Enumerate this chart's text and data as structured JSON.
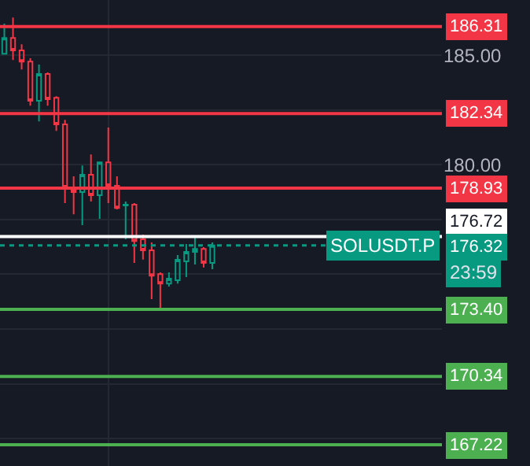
{
  "chart_data": {
    "type": "candlestick",
    "categories": [
      null,
      null,
      null,
      null,
      null,
      null,
      null,
      null,
      null,
      null,
      null,
      null,
      null,
      null,
      null,
      null,
      null,
      null,
      null,
      null,
      null,
      null,
      null,
      null,
      null,
      null,
      null,
      null,
      null,
      null,
      null,
      null,
      null,
      null,
      null,
      null,
      null,
      null,
      null,
      null,
      null,
      null,
      null,
      null,
      null,
      null,
      null,
      null,
      null,
      null,
      null
    ],
    "ohlc": [
      [
        185.07,
        186.44,
        185.07,
        185.79
      ],
      [
        185.79,
        186.72,
        184.78,
        185.22
      ],
      [
        185.22,
        185.5,
        184.35,
        184.71
      ],
      [
        184.71,
        184.86,
        182.7,
        182.92
      ],
      [
        182.92,
        184.57,
        181.98,
        184.14
      ],
      [
        184.14,
        184.21,
        182.7,
        182.99
      ],
      [
        183.06,
        183.13,
        181.55,
        181.84
      ],
      [
        181.84,
        182.05,
        178.25,
        178.97
      ],
      [
        178.97,
        179.47,
        177.74,
        178.75
      ],
      [
        178.75,
        179.97,
        177.24,
        179.54
      ],
      [
        179.54,
        180.47,
        178.32,
        178.61
      ],
      [
        178.61,
        180.11,
        177.53,
        180.11
      ],
      [
        180.11,
        181.7,
        178.25,
        179.04
      ],
      [
        179.04,
        179.47,
        177.96,
        178.03
      ],
      [
        178.14,
        178.32,
        176.6,
        178.18
      ],
      [
        178.18,
        178.25,
        175.52,
        176.52
      ],
      [
        176.6,
        176.81,
        175.67,
        176.09
      ],
      [
        176.09,
        176.45,
        173.87,
        174.94
      ],
      [
        175.01,
        175.09,
        173.36,
        174.58
      ],
      [
        174.58,
        175.09,
        174.44,
        174.8
      ],
      [
        174.73,
        175.88,
        174.58,
        175.66
      ],
      [
        175.59,
        176.38,
        174.87,
        176.02
      ],
      [
        176.02,
        176.67,
        175.45,
        176.16
      ],
      [
        176.16,
        176.24,
        175.31,
        175.52
      ],
      [
        175.52,
        176.45,
        175.23,
        176.32
      ],
      null,
      null,
      null,
      null,
      null,
      null,
      null,
      null,
      null,
      null,
      null,
      null,
      null,
      null,
      null,
      null,
      null,
      null,
      null,
      null,
      null,
      null,
      null,
      null,
      null,
      null
    ],
    "ylim": [
      166.25,
      187.52
    ],
    "yticks": [
      {
        "value": 187.5,
        "label": null
      },
      {
        "value": 185,
        "label": "185.00"
      },
      {
        "value": 182.5,
        "label": null
      },
      {
        "value": 180,
        "label": "180.00"
      },
      {
        "value": 177.5,
        "label": null
      },
      {
        "value": 175,
        "label": null
      },
      {
        "value": 172.5,
        "label": null
      },
      {
        "value": 170,
        "label": null
      },
      {
        "value": 167.5,
        "label": null
      }
    ],
    "grid": true,
    "tick_labels": "y",
    "ref_lines": [
      {
        "axis": "y",
        "value": 186.31,
        "label": "186.31",
        "color": "#f23645",
        "line_style": "solid"
      },
      {
        "axis": "y",
        "value": 182.34,
        "label": "182.34",
        "color": "#f23645",
        "line_style": "solid"
      },
      {
        "axis": "y",
        "value": 178.93,
        "label": "178.93",
        "color": "#f23645",
        "line_style": "solid"
      },
      {
        "axis": "y",
        "value": 176.72,
        "label": "176.72",
        "color": "#ffffff",
        "line_style": "solid"
      },
      {
        "axis": "y",
        "value": 176.32,
        "label": "176.32",
        "color": "#089981",
        "line_style": "dotted"
      },
      {
        "axis": "y",
        "value": 173.4,
        "label": "173.40",
        "color": "#4caf50",
        "line_style": "solid"
      },
      {
        "axis": "y",
        "value": 170.34,
        "label": "170.34",
        "color": "#4caf50",
        "line_style": "solid"
      },
      {
        "axis": "y",
        "value": 167.22,
        "label": "167.22",
        "color": "#4caf50",
        "line_style": "solid"
      }
    ],
    "annotations": [
      {
        "text": "SOLUSDT.P",
        "y": 176.32
      },
      "23:59"
    ]
  }
}
